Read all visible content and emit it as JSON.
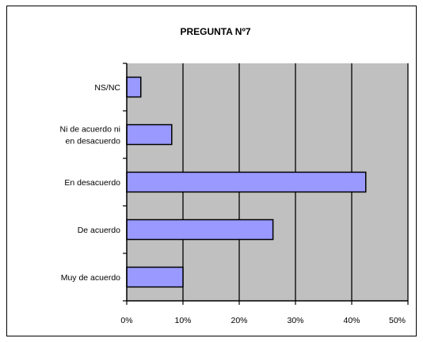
{
  "chart_data": {
    "type": "bar",
    "orientation": "horizontal",
    "title": "PREGUNTA Nº7",
    "categories": [
      "NS/NC",
      "Ni de acuerdo ni en desacuerdo",
      "En desacuerdo",
      "De acuerdo",
      "Muy de acuerdo"
    ],
    "category_label_lines": [
      [
        "NS/NC"
      ],
      [
        "Ni de acuerdo ni",
        "en desacuerdo"
      ],
      [
        "En desacuerdo"
      ],
      [
        "De acuerdo"
      ],
      [
        "Muy de acuerdo"
      ]
    ],
    "values": [
      2.5,
      8,
      42.5,
      26,
      10
    ],
    "xlim": [
      0,
      50
    ],
    "xticks": [
      0,
      10,
      20,
      30,
      40,
      50
    ],
    "xtick_labels": [
      "0%",
      "10%",
      "20%",
      "30%",
      "40%",
      "50%"
    ],
    "grid": "vertical",
    "legend": "none",
    "colors": {
      "plot_background": "#c0c0c0",
      "bar_fill": "#9999ff",
      "bar_stroke": "#000000",
      "grid": "#000000"
    }
  }
}
